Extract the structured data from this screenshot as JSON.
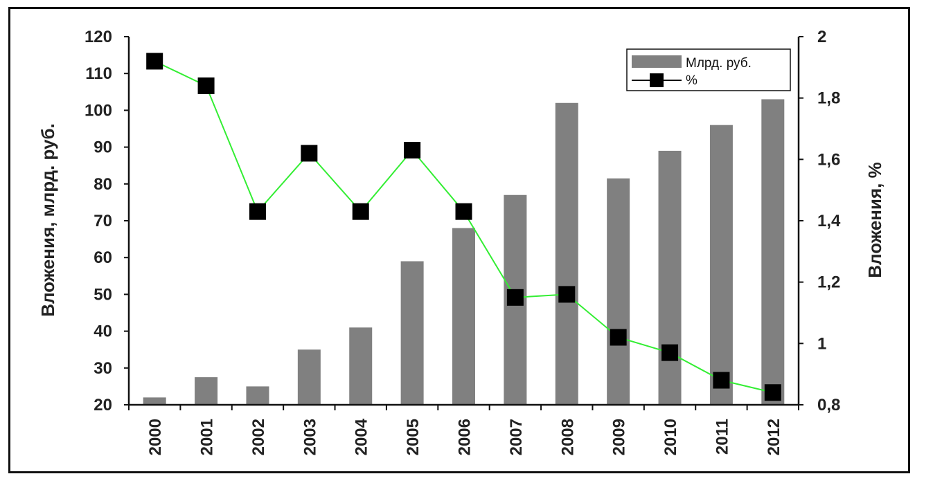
{
  "chart_data": {
    "type": "bar",
    "x": [
      "2000",
      "2001",
      "2002",
      "2003",
      "2004",
      "2005",
      "2006",
      "2007",
      "2008",
      "2009",
      "2010",
      "2011",
      "2012"
    ],
    "ylabel": "Вложения, млрд. руб.",
    "y2label": "Вложения, %",
    "ylim": [
      20,
      120
    ],
    "y2lim": [
      0.8,
      2
    ],
    "y_ticks": [
      "20",
      "30",
      "40",
      "50",
      "60",
      "70",
      "80",
      "90",
      "100",
      "110",
      "120"
    ],
    "y2_ticks": [
      "0,8",
      "1",
      "1,2",
      "1,4",
      "1,6",
      "1,8",
      "2"
    ],
    "legend_position": "top-right",
    "series": [
      {
        "name": "Млрд. руб.",
        "type": "bar",
        "axis": "left",
        "color": "#808080",
        "values": [
          22,
          27.5,
          25,
          35,
          41,
          59,
          68,
          77,
          102,
          81.5,
          89,
          96,
          103
        ]
      },
      {
        "name": "%",
        "type": "line",
        "axis": "right",
        "color": "#33ee33",
        "marker_color": "#000000",
        "values": [
          1.92,
          1.84,
          1.43,
          1.62,
          1.43,
          1.63,
          1.43,
          1.15,
          1.16,
          1.02,
          0.97,
          0.88,
          0.84
        ]
      }
    ]
  }
}
